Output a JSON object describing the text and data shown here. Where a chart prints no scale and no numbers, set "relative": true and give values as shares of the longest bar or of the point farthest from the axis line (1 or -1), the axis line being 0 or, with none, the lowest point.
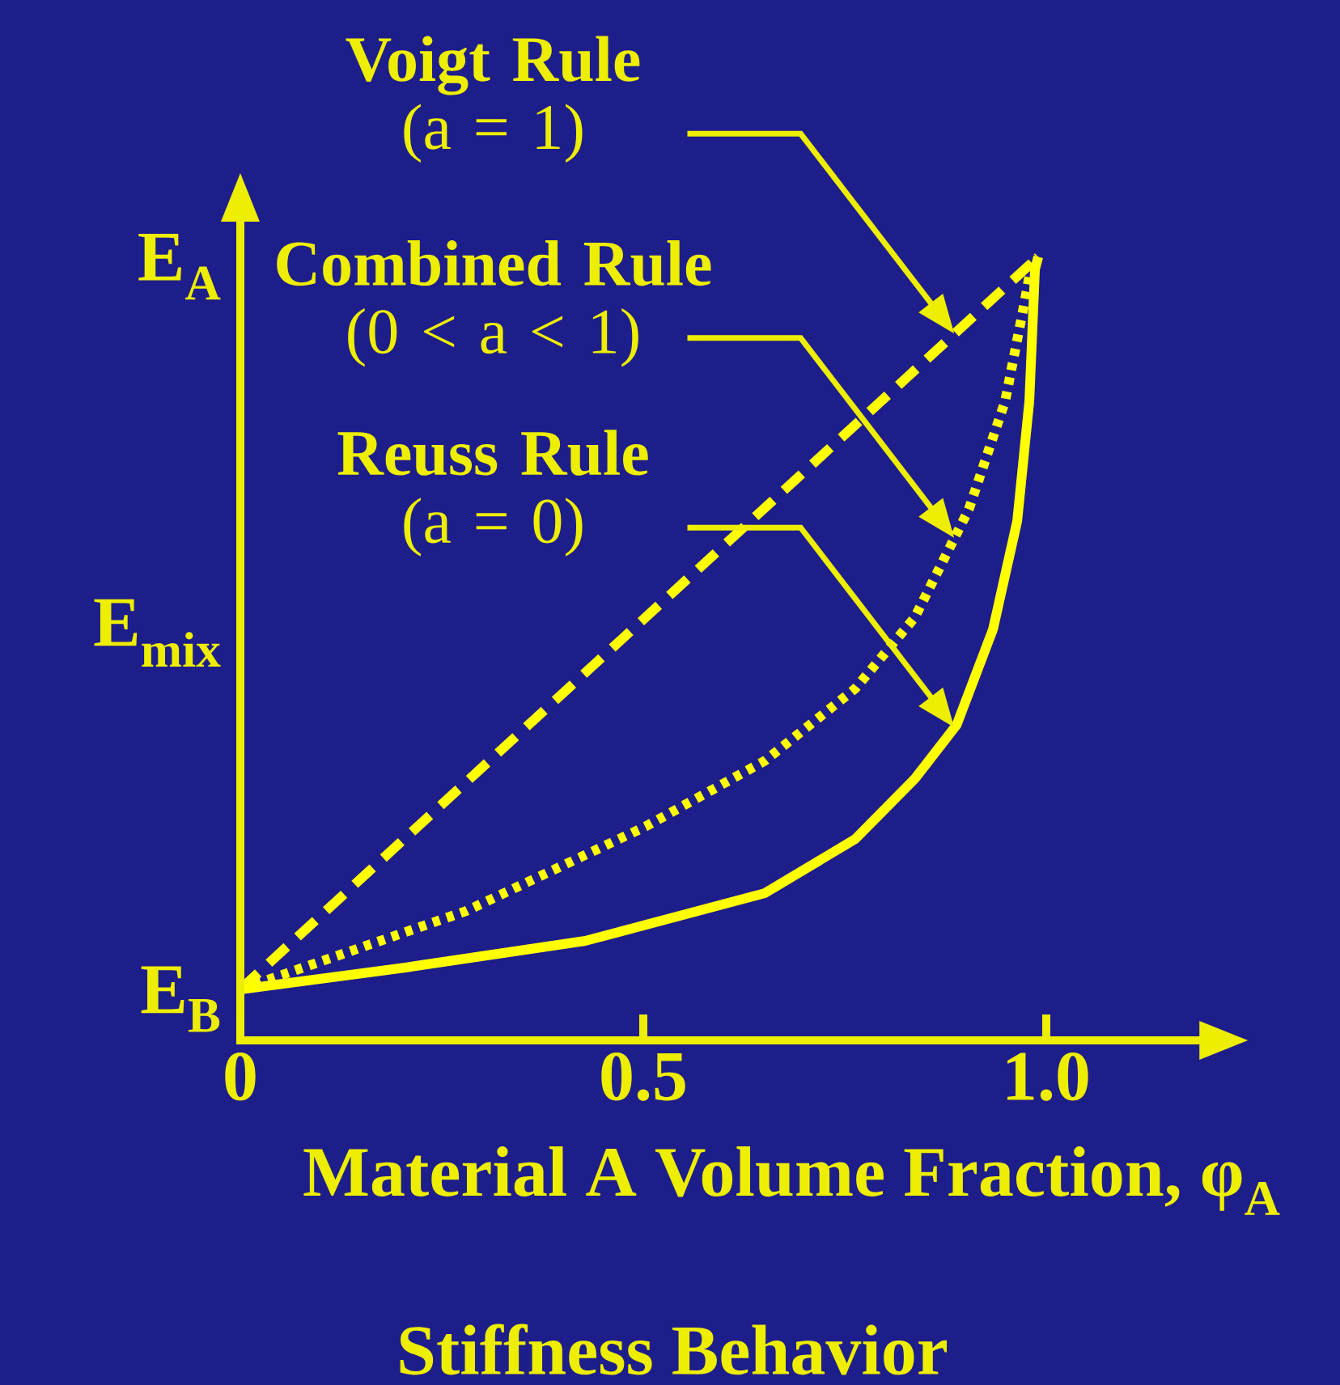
{
  "chart_data": {
    "type": "line",
    "title": "Stiffness Behavior",
    "xlabel": "Material A Volume Fraction, φ$_{A}$",
    "relative": true,
    "xlim": [
      0,
      1.19
    ],
    "xticks": [
      0,
      0.5,
      {
        "value": 1,
        "label": "1.0"
      }
    ],
    "series": [
      {
        "color": "#ffff00",
        "line_style": "dashed",
        "x": [
          0,
          0.99
        ],
        "values": [
          0.065,
          1.0
        ]
      },
      {
        "color": "#ffff00",
        "line_style": "dotted",
        "x": [
          0,
          0.28,
          0.503,
          0.651,
          0.763,
          0.837,
          0.904,
          0.949,
          0.971,
          0.982,
          0.99
        ],
        "values": [
          0.065,
          0.165,
          0.273,
          0.357,
          0.449,
          0.54,
          0.678,
          0.816,
          0.931,
          0.992,
          1.0
        ]
      },
      {
        "color": "#ffff00",
        "line_style": "solid",
        "x": [
          0,
          0.205,
          0.428,
          0.651,
          0.763,
          0.837,
          0.889,
          0.934,
          0.964,
          0.979,
          0.986,
          0.99
        ],
        "values": [
          0.065,
          0.093,
          0.127,
          0.188,
          0.257,
          0.334,
          0.403,
          0.525,
          0.663,
          0.816,
          0.984,
          1.0
        ]
      }
    ],
    "annotations": [
      "**Voigt Rule** (a = 1)",
      "**Combined Rule** (0 < a < 1)",
      "**Reuss Rule** (a = 0)",
      "E$_{A}$",
      "E$_{mix}$",
      "E$_{B}$"
    ]
  }
}
